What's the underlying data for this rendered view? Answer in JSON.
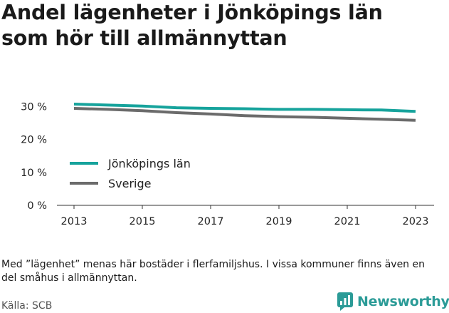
{
  "title_lines": [
    "Andel lägenheter i Jönköpings län",
    "som hör till allmännyttan"
  ],
  "note": "Med ”lägenhet” menas här bostäder i flerfamiljshus. I vissa kommuner finns även en del småhus i allmännyttan.",
  "source": "Källa: SCB",
  "brand": {
    "name": "Newsworthy",
    "icon": "newsworthy-logo-icon",
    "color": "#2b9b97"
  },
  "chart_data": {
    "type": "line",
    "title": "Andel lägenheter i Jönköpings län som hör till allmännyttan",
    "x": [
      2013,
      2014,
      2015,
      2016,
      2017,
      2018,
      2019,
      2020,
      2021,
      2022,
      2023
    ],
    "x_ticks": [
      2013,
      2015,
      2017,
      2019,
      2021,
      2023
    ],
    "y_ticks": [
      0,
      10,
      20,
      30
    ],
    "y_tick_labels": [
      "0 %",
      "10 %",
      "20 %",
      "30 %"
    ],
    "ylim": [
      0,
      32
    ],
    "grid": false,
    "legend_position": "lower-left",
    "series": [
      {
        "name": "Jönköpings län",
        "color": "#16a39c",
        "values": [
          30.7,
          30.4,
          30.1,
          29.6,
          29.4,
          29.3,
          29.1,
          29.1,
          29.0,
          28.9,
          28.5
        ]
      },
      {
        "name": "Sverige",
        "color": "#6b6b6b",
        "values": [
          29.4,
          29.1,
          28.7,
          28.1,
          27.7,
          27.2,
          26.9,
          26.7,
          26.4,
          26.1,
          25.8
        ]
      }
    ]
  }
}
